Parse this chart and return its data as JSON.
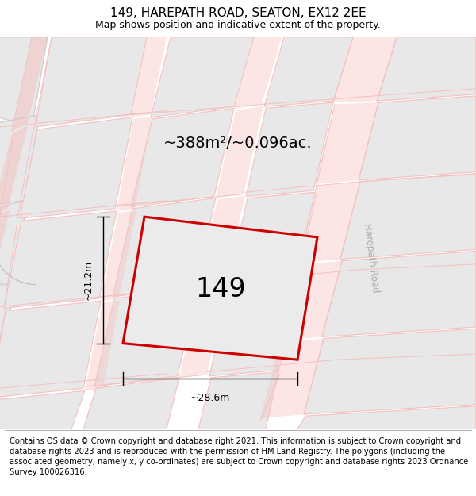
{
  "title": "149, HAREPATH ROAD, SEATON, EX12 2EE",
  "subtitle": "Map shows position and indicative extent of the property.",
  "footer": "Contains OS data © Crown copyright and database right 2021. This information is subject to Crown copyright and database rights 2023 and is reproduced with the permission of HM Land Registry. The polygons (including the associated geometry, namely x, y co-ordinates) are subject to Crown copyright and database rights 2023 Ordnance Survey 100026316.",
  "area_text": "~388m²/~0.096ac.",
  "property_number": "149",
  "dim_width": "~28.6m",
  "dim_height": "~21.2m",
  "road_color": "#f5c0c0",
  "highlight_color": "#cc0000",
  "block_fill": "#e8e8e8",
  "block_edge": "#c8c8c8",
  "road_label": "Harepath Road",
  "map_bg": "#ffffff",
  "title_fontsize": 11,
  "subtitle_fontsize": 9,
  "footer_fontsize": 7.2
}
